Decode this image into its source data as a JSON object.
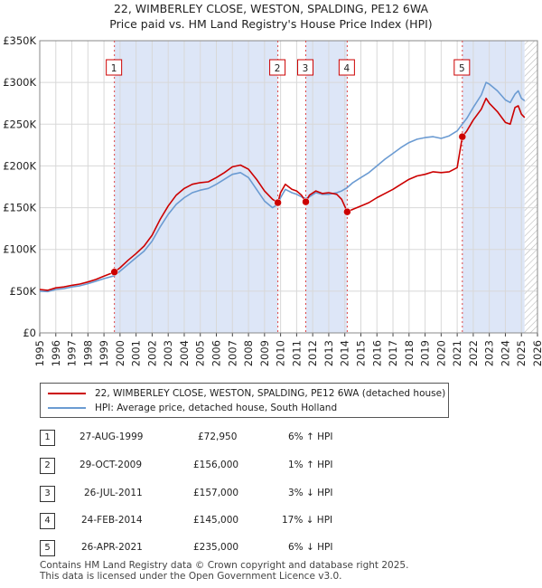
{
  "title_line1": "22, WIMBERLEY CLOSE, WESTON, SPALDING, PE12 6WA",
  "title_line2": "Price paid vs. HM Land Registry's House Price Index (HPI)",
  "colors": {
    "property": "#cc0000",
    "hpi": "#6b9bd2",
    "shade": "#dde6f7",
    "grid": "#d8d8d8"
  },
  "chart_data": {
    "type": "line",
    "title": "22, WIMBERLEY CLOSE, WESTON, SPALDING, PE12 6WA — Price paid vs. HM Land Registry's House Price Index (HPI)",
    "xlabel": "",
    "ylabel": "",
    "xlim": [
      1995,
      2026
    ],
    "ylim": [
      0,
      350000
    ],
    "x_ticks": [
      "1995",
      "1996",
      "1997",
      "1998",
      "1999",
      "2000",
      "2001",
      "2002",
      "2003",
      "2004",
      "2005",
      "2006",
      "2007",
      "2008",
      "2009",
      "2010",
      "2011",
      "2012",
      "2013",
      "2014",
      "2015",
      "2016",
      "2017",
      "2018",
      "2019",
      "2020",
      "2021",
      "2022",
      "2023",
      "2024",
      "2025",
      "2026"
    ],
    "y_ticks": [
      {
        "value": 0,
        "label": "£0"
      },
      {
        "value": 50000,
        "label": "£50K"
      },
      {
        "value": 100000,
        "label": "£100K"
      },
      {
        "value": 150000,
        "label": "£150K"
      },
      {
        "value": 200000,
        "label": "£200K"
      },
      {
        "value": 250000,
        "label": "£250K"
      },
      {
        "value": 300000,
        "label": "£300K"
      },
      {
        "value": 350000,
        "label": "£350K"
      }
    ],
    "shaded_periods": [
      [
        1999.65,
        2009.83
      ],
      [
        2011.57,
        2014.15
      ],
      [
        2021.32,
        2025.2
      ]
    ],
    "hatched_after": 2025.2,
    "series": [
      {
        "name": "22, WIMBERLEY CLOSE, WESTON, SPALDING, PE12 6WA (detached house)",
        "color": "#cc0000",
        "points": [
          [
            1995.0,
            52000
          ],
          [
            1995.5,
            51000
          ],
          [
            1996.0,
            54000
          ],
          [
            1996.5,
            55000
          ],
          [
            1997.0,
            57000
          ],
          [
            1997.5,
            58500
          ],
          [
            1998.0,
            61000
          ],
          [
            1998.5,
            64000
          ],
          [
            1999.0,
            68000
          ],
          [
            1999.65,
            72950
          ],
          [
            2000.0,
            78000
          ],
          [
            2000.5,
            87000
          ],
          [
            2001.0,
            95000
          ],
          [
            2001.5,
            104000
          ],
          [
            2002.0,
            117000
          ],
          [
            2002.5,
            136000
          ],
          [
            2003.0,
            152000
          ],
          [
            2003.5,
            165000
          ],
          [
            2004.0,
            173000
          ],
          [
            2004.5,
            178000
          ],
          [
            2005.0,
            180000
          ],
          [
            2005.5,
            181000
          ],
          [
            2006.0,
            186000
          ],
          [
            2006.5,
            192000
          ],
          [
            2007.0,
            199000
          ],
          [
            2007.5,
            201000
          ],
          [
            2008.0,
            196000
          ],
          [
            2008.5,
            184000
          ],
          [
            2009.0,
            170000
          ],
          [
            2009.5,
            160000
          ],
          [
            2009.83,
            156000
          ],
          [
            2010.0,
            168000
          ],
          [
            2010.3,
            178000
          ],
          [
            2010.7,
            172000
          ],
          [
            2011.0,
            170000
          ],
          [
            2011.3,
            165000
          ],
          [
            2011.57,
            157000
          ],
          [
            2011.8,
            165000
          ],
          [
            2012.2,
            170000
          ],
          [
            2012.6,
            167000
          ],
          [
            2013.0,
            168000
          ],
          [
            2013.5,
            166000
          ],
          [
            2013.8,
            160000
          ],
          [
            2014.15,
            145000
          ],
          [
            2014.5,
            148000
          ],
          [
            2015.0,
            152000
          ],
          [
            2015.5,
            156000
          ],
          [
            2016.0,
            162000
          ],
          [
            2016.5,
            167000
          ],
          [
            2017.0,
            172000
          ],
          [
            2017.5,
            178000
          ],
          [
            2018.0,
            184000
          ],
          [
            2018.5,
            188000
          ],
          [
            2019.0,
            190000
          ],
          [
            2019.5,
            193000
          ],
          [
            2020.0,
            192000
          ],
          [
            2020.5,
            193000
          ],
          [
            2021.0,
            198000
          ],
          [
            2021.32,
            235000
          ],
          [
            2021.6,
            242000
          ],
          [
            2022.0,
            255000
          ],
          [
            2022.5,
            268000
          ],
          [
            2022.8,
            281000
          ],
          [
            2023.0,
            275000
          ],
          [
            2023.5,
            265000
          ],
          [
            2024.0,
            252000
          ],
          [
            2024.3,
            250000
          ],
          [
            2024.6,
            270000
          ],
          [
            2024.8,
            272000
          ],
          [
            2025.0,
            262000
          ],
          [
            2025.2,
            258000
          ]
        ]
      },
      {
        "name": "HPI: Average price, detached house, South Holland",
        "color": "#6b9bd2",
        "points": [
          [
            1995.0,
            50000
          ],
          [
            1995.5,
            49500
          ],
          [
            1996.0,
            52000
          ],
          [
            1996.5,
            53000
          ],
          [
            1997.0,
            55000
          ],
          [
            1997.5,
            56500
          ],
          [
            1998.0,
            59000
          ],
          [
            1998.5,
            62000
          ],
          [
            1999.0,
            65000
          ],
          [
            1999.65,
            68500
          ],
          [
            2000.0,
            74000
          ],
          [
            2000.5,
            82000
          ],
          [
            2001.0,
            90000
          ],
          [
            2001.5,
            98000
          ],
          [
            2002.0,
            110000
          ],
          [
            2002.5,
            127000
          ],
          [
            2003.0,
            142000
          ],
          [
            2003.5,
            154000
          ],
          [
            2004.0,
            162000
          ],
          [
            2004.5,
            168000
          ],
          [
            2005.0,
            171000
          ],
          [
            2005.5,
            173000
          ],
          [
            2006.0,
            178000
          ],
          [
            2006.5,
            184000
          ],
          [
            2007.0,
            190000
          ],
          [
            2007.5,
            192000
          ],
          [
            2008.0,
            186000
          ],
          [
            2008.5,
            172000
          ],
          [
            2009.0,
            158000
          ],
          [
            2009.5,
            150000
          ],
          [
            2009.83,
            154000
          ],
          [
            2010.0,
            162000
          ],
          [
            2010.3,
            172000
          ],
          [
            2010.7,
            168000
          ],
          [
            2011.0,
            166000
          ],
          [
            2011.3,
            163000
          ],
          [
            2011.57,
            161000
          ],
          [
            2011.8,
            163000
          ],
          [
            2012.2,
            168000
          ],
          [
            2012.6,
            166000
          ],
          [
            2013.0,
            166000
          ],
          [
            2013.5,
            168000
          ],
          [
            2013.8,
            170000
          ],
          [
            2014.15,
            174000
          ],
          [
            2014.5,
            180000
          ],
          [
            2015.0,
            186000
          ],
          [
            2015.5,
            192000
          ],
          [
            2016.0,
            200000
          ],
          [
            2016.5,
            208000
          ],
          [
            2017.0,
            215000
          ],
          [
            2017.5,
            222000
          ],
          [
            2018.0,
            228000
          ],
          [
            2018.5,
            232000
          ],
          [
            2019.0,
            234000
          ],
          [
            2019.5,
            235000
          ],
          [
            2020.0,
            233000
          ],
          [
            2020.5,
            236000
          ],
          [
            2021.0,
            242000
          ],
          [
            2021.32,
            250000
          ],
          [
            2021.6,
            257000
          ],
          [
            2022.0,
            270000
          ],
          [
            2022.5,
            285000
          ],
          [
            2022.8,
            300000
          ],
          [
            2023.0,
            298000
          ],
          [
            2023.5,
            290000
          ],
          [
            2024.0,
            279000
          ],
          [
            2024.3,
            276000
          ],
          [
            2024.6,
            286000
          ],
          [
            2024.8,
            290000
          ],
          [
            2025.0,
            281000
          ],
          [
            2025.2,
            278000
          ]
        ]
      }
    ],
    "sales": [
      {
        "id": "1",
        "date": "27-AUG-1999",
        "price": "£72,950",
        "hpi": "6% ↑ HPI",
        "x": 1999.65,
        "value": 72950
      },
      {
        "id": "2",
        "date": "29-OCT-2009",
        "price": "£156,000",
        "hpi": "1% ↑ HPI",
        "x": 2009.83,
        "value": 156000
      },
      {
        "id": "3",
        "date": "26-JUL-2011",
        "price": "£157,000",
        "hpi": "3% ↓ HPI",
        "x": 2011.57,
        "value": 157000
      },
      {
        "id": "4",
        "date": "24-FEB-2014",
        "price": "£145,000",
        "hpi": "17% ↓ HPI",
        "x": 2014.15,
        "value": 145000
      },
      {
        "id": "5",
        "date": "26-APR-2021",
        "price": "£235,000",
        "hpi": "6% ↓ HPI",
        "x": 2021.32,
        "value": 235000
      }
    ]
  },
  "legend": {
    "property": "22, WIMBERLEY CLOSE, WESTON, SPALDING, PE12 6WA (detached house)",
    "hpi": "HPI: Average price, detached house, South Holland"
  },
  "footer": {
    "line1": "Contains HM Land Registry data © Crown copyright and database right 2025.",
    "line2": "This data is licensed under the Open Government Licence v3.0."
  }
}
